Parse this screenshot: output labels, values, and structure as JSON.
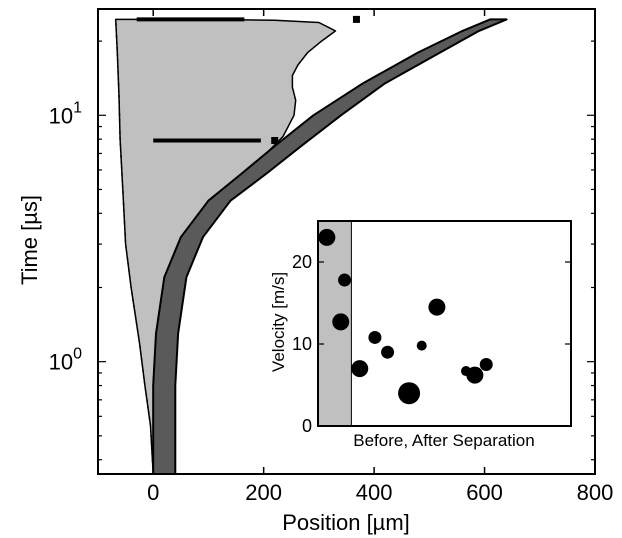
{
  "chart_data": [
    {
      "type": "area",
      "xlabel": "Position [µm]",
      "ylabel": "Time [µs]",
      "xlim": [
        -100,
        800
      ],
      "ylim": [
        0.35,
        27
      ],
      "yscale": "log",
      "xticks": [
        0,
        200,
        400,
        600,
        800
      ],
      "xtick_labels": [
        "0",
        "200",
        "400",
        "600",
        "800"
      ],
      "yticks": [
        1,
        10
      ],
      "ytick_labels": [
        {
          "base": "10",
          "exp": "0"
        },
        {
          "base": "10",
          "exp": "1"
        }
      ],
      "grid": false,
      "series": [
        {
          "role": "light-gray-region",
          "color": "#c0c0c0",
          "left_edge": [
            [
              0,
              0.35
            ],
            [
              -5,
              0.55
            ],
            [
              -15,
              0.8
            ],
            [
              -25,
              1.2
            ],
            [
              -40,
              2.0
            ],
            [
              -50,
              3.0
            ],
            [
              -55,
              5.0
            ],
            [
              -60,
              8.0
            ],
            [
              -62,
              12.0
            ],
            [
              -65,
              18.0
            ],
            [
              -68,
              24.5
            ]
          ],
          "right_edge": [
            [
              0,
              0.35
            ],
            [
              0,
              0.8
            ],
            [
              5,
              1.3
            ],
            [
              20,
              2.2
            ],
            [
              50,
              3.2
            ],
            [
              100,
              4.5
            ],
            [
              160,
              5.8
            ],
            [
              205,
              7.0
            ],
            [
              235,
              8.2
            ],
            [
              255,
              10.0
            ],
            [
              258,
              11.5
            ],
            [
              252,
              13.0
            ],
            [
              252,
              14.5
            ],
            [
              262,
              16.0
            ],
            [
              280,
              18.0
            ],
            [
              305,
              20.0
            ],
            [
              330,
              22.0
            ],
            [
              300,
              23.8
            ],
            [
              220,
              24.3
            ],
            [
              100,
              24.5
            ],
            [
              -68,
              24.5
            ]
          ]
        },
        {
          "role": "dark-gray-band",
          "color": "#5a5a5a",
          "left_edge": [
            [
              0,
              0.35
            ],
            [
              0,
              0.8
            ],
            [
              5,
              1.3
            ],
            [
              20,
              2.2
            ],
            [
              50,
              3.2
            ],
            [
              100,
              4.5
            ],
            [
              160,
              5.8
            ],
            [
              220,
              7.5
            ],
            [
              290,
              10.0
            ],
            [
              380,
              13.5
            ],
            [
              480,
              18.0
            ],
            [
              560,
              22.0
            ],
            [
              610,
              24.5
            ]
          ],
          "right_edge": [
            [
              40,
              0.35
            ],
            [
              40,
              0.8
            ],
            [
              45,
              1.3
            ],
            [
              60,
              2.2
            ],
            [
              90,
              3.2
            ],
            [
              140,
              4.5
            ],
            [
              205,
              5.8
            ],
            [
              268,
              7.5
            ],
            [
              340,
              10.0
            ],
            [
              420,
              13.5
            ],
            [
              520,
              18.0
            ],
            [
              590,
              22.0
            ],
            [
              640,
              24.5
            ]
          ]
        }
      ],
      "annotations": [
        {
          "type": "segment",
          "x": [
            -30,
            165
          ],
          "y": 24.5
        },
        {
          "type": "segment",
          "x": [
            0,
            195
          ],
          "y": 7.9
        },
        {
          "type": "marker",
          "shape": "square",
          "x": 220,
          "y": 7.9
        },
        {
          "type": "marker",
          "shape": "square",
          "x": 368,
          "y": 24.5
        }
      ]
    },
    {
      "type": "scatter",
      "ylabel": "Velocity [m/s]",
      "xlabel": "Before, After Separation",
      "ylim": [
        0,
        25
      ],
      "xlim": [
        0,
        10
      ],
      "yticks": [
        0,
        10,
        20
      ],
      "ytick_labels": [
        "0",
        "10",
        "20"
      ],
      "shaded_region": {
        "x": [
          0,
          1.32
        ],
        "label": "Before"
      },
      "points": [
        {
          "x": 0.35,
          "y": 23.0,
          "size": "medium"
        },
        {
          "x": 0.9,
          "y": 12.7,
          "size": "medium"
        },
        {
          "x": 1.05,
          "y": 17.8,
          "size": "small"
        },
        {
          "x": 1.65,
          "y": 7.0,
          "size": "medium"
        },
        {
          "x": 2.25,
          "y": 10.8,
          "size": "small"
        },
        {
          "x": 2.75,
          "y": 9.0,
          "size": "small"
        },
        {
          "x": 3.6,
          "y": 4.0,
          "size": "large"
        },
        {
          "x": 4.1,
          "y": 9.8,
          "size": "tiny"
        },
        {
          "x": 4.7,
          "y": 14.5,
          "size": "medium"
        },
        {
          "x": 5.85,
          "y": 6.7,
          "size": "tiny"
        },
        {
          "x": 6.2,
          "y": 6.2,
          "size": "medium"
        },
        {
          "x": 6.65,
          "y": 7.5,
          "size": "small"
        }
      ]
    }
  ]
}
